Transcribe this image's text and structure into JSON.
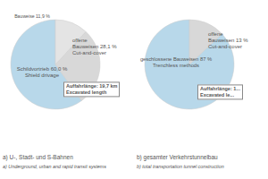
{
  "chart_data": [
    {
      "type": "pie",
      "title": "a) U-, Stadt- und S-Bahnen",
      "subtitle": "a) Underground, urban and rapid transit systems",
      "values": [
        60.0,
        28.1,
        11.9
      ],
      "colors": [
        "#b8d8ea",
        "#d8d8d8",
        "#e4e4e4"
      ],
      "annotations": [
        "Schildvortrieb 60,0 %\nShield drivage",
        "offene\nBauweisen 28,1 %\nCut-and-cover",
        "Bauweise 11,9 %",
        "Auffahrlänge: 19,7 km\nExcavated length"
      ]
    },
    {
      "type": "pie",
      "title": "b) gesamter Verkehrstunnelbau",
      "subtitle": "b) total transportation tunnel construction",
      "values": [
        87.0,
        13.0
      ],
      "colors": [
        "#b8d8ea",
        "#d8d8d8"
      ],
      "annotations": [
        "geschlossene Bauweisen 87 %\nTrenchless methods",
        "offene\nBauweisen 13 %\nCut-and-cover",
        "Auffahrlänge: 1...\nExcavated le..."
      ]
    }
  ]
}
